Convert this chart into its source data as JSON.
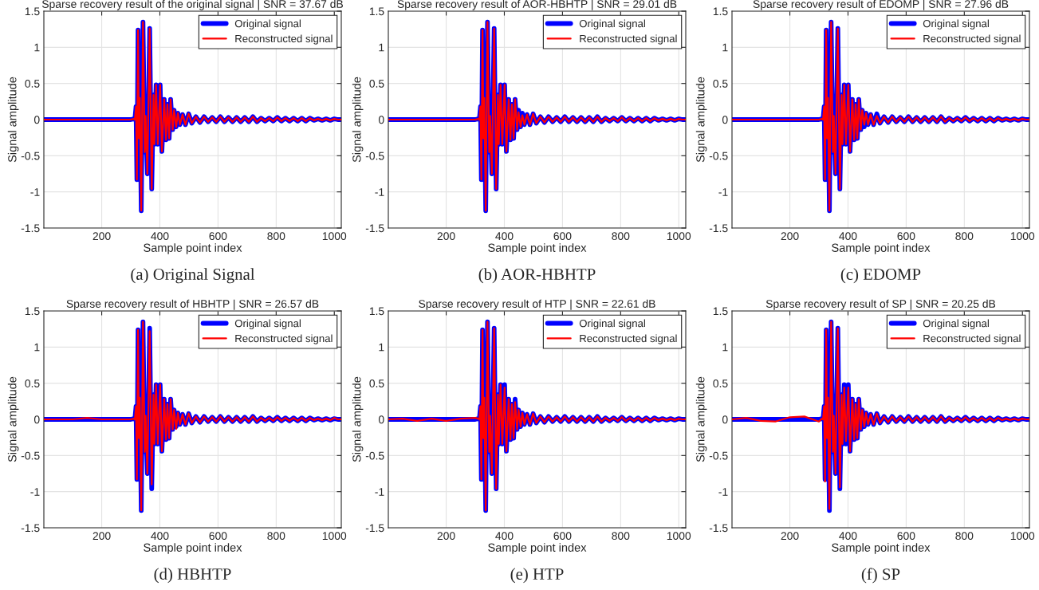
{
  "chart_data": [
    {
      "type": "line",
      "title": "Sparse recovery result of the original signal | SNR = 37.67 dB",
      "xlabel": "Sample point index",
      "ylabel": "Signal amplitude",
      "annotations": [
        "(a) Original Signal"
      ],
      "xlim": [
        1,
        1024
      ],
      "xticks": [
        200,
        400,
        600,
        800,
        1000
      ],
      "ylim": [
        -1.5,
        1.5
      ],
      "yticks": [
        -1.5,
        -1,
        -0.5,
        0,
        0.5,
        1,
        1.5
      ],
      "grid": true,
      "legend": "top right",
      "line_style": "solid",
      "x": [
        1,
        50,
        100,
        150,
        200,
        250,
        300,
        310,
        314,
        318,
        321,
        325,
        328,
        331,
        336,
        342,
        348,
        351,
        357,
        365,
        372,
        378,
        381,
        387,
        393,
        401,
        407,
        415,
        421,
        426,
        432,
        437,
        444,
        449,
        456,
        462,
        469,
        478,
        488,
        499,
        510,
        524,
        538,
        552,
        566,
        580,
        594,
        608,
        622,
        636,
        650,
        664,
        678,
        692,
        706,
        720,
        734,
        748,
        762,
        776,
        790,
        804,
        818,
        832,
        846,
        860,
        874,
        888,
        902,
        916,
        930,
        944,
        958,
        972,
        986,
        1000,
        1012,
        1024
      ],
      "series": [
        {
          "name": "Original signal",
          "color": "#0000ff",
          "values": [
            0,
            0,
            0,
            0,
            0,
            0,
            0,
            0.01,
            0,
            0.18,
            -0.83,
            1.24,
            -0.26,
            0.3,
            -1.26,
            1.35,
            -0.45,
            0.05,
            -0.75,
            1.26,
            -0.96,
            0.34,
            -0.34,
            0.48,
            -0.34,
            0.48,
            -0.44,
            0.28,
            -0.28,
            0.21,
            -0.26,
            0.28,
            -0.14,
            0.13,
            -0.1,
            0.09,
            -0.07,
            0.07,
            -0.07,
            0.08,
            -0.05,
            0.04,
            -0.04,
            0.04,
            -0.03,
            0.03,
            -0.03,
            0.04,
            -0.03,
            0.03,
            -0.03,
            0.03,
            -0.03,
            0.03,
            -0.03,
            0.04,
            -0.03,
            0.02,
            -0.02,
            0.02,
            -0.02,
            0.03,
            -0.02,
            0.02,
            -0.02,
            0.02,
            -0.02,
            0.02,
            -0.02,
            0.02,
            -0.01,
            0.01,
            -0.01,
            0.01,
            -0.01,
            0.01,
            0,
            0
          ]
        },
        {
          "name": "Reconstructed signal",
          "color": "#ff0000",
          "values": [
            0,
            0,
            0,
            0,
            0,
            0,
            0,
            0.01,
            0,
            0.18,
            -0.83,
            1.24,
            -0.26,
            0.3,
            -1.26,
            1.35,
            -0.45,
            0.05,
            -0.75,
            1.26,
            -0.96,
            0.34,
            -0.34,
            0.48,
            -0.34,
            0.48,
            -0.44,
            0.28,
            -0.28,
            0.21,
            -0.26,
            0.28,
            -0.14,
            0.13,
            -0.1,
            0.09,
            -0.07,
            0.07,
            -0.07,
            0.08,
            -0.05,
            0.04,
            -0.04,
            0.04,
            -0.03,
            0.03,
            -0.03,
            0.04,
            -0.03,
            0.03,
            -0.03,
            0.03,
            -0.03,
            0.03,
            -0.03,
            0.04,
            -0.03,
            0.02,
            -0.02,
            0.02,
            -0.02,
            0.03,
            -0.02,
            0.02,
            -0.02,
            0.02,
            -0.02,
            0.02,
            -0.02,
            0.02,
            -0.01,
            0.01,
            -0.01,
            0.01,
            -0.01,
            0.01,
            0,
            0
          ]
        }
      ]
    },
    {
      "type": "line",
      "title": "Sparse recovery result of AOR-HBHTP | SNR = 29.01 dB",
      "xlabel": "Sample point index",
      "ylabel": "Signal amplitude",
      "annotations": [
        "(b) AOR-HBHTP"
      ],
      "xlim": [
        1,
        1024
      ],
      "xticks": [
        200,
        400,
        600,
        800,
        1000
      ],
      "ylim": [
        -1.5,
        1.5
      ],
      "yticks": [
        -1.5,
        -1,
        -0.5,
        0,
        0.5,
        1,
        1.5
      ],
      "grid": true,
      "legend": "top right",
      "line_style": "solid",
      "x": [
        1,
        50,
        100,
        150,
        200,
        250,
        300,
        310,
        314,
        318,
        321,
        325,
        328,
        331,
        336,
        342,
        348,
        351,
        357,
        365,
        372,
        378,
        381,
        387,
        393,
        401,
        407,
        415,
        421,
        426,
        432,
        437,
        444,
        449,
        456,
        462,
        469,
        478,
        488,
        499,
        510,
        524,
        538,
        552,
        566,
        580,
        594,
        608,
        622,
        636,
        650,
        664,
        678,
        692,
        706,
        720,
        734,
        748,
        762,
        776,
        790,
        804,
        818,
        832,
        846,
        860,
        874,
        888,
        902,
        916,
        930,
        944,
        958,
        972,
        986,
        1000,
        1012,
        1024
      ],
      "series": [
        {
          "name": "Original signal",
          "color": "#0000ff",
          "values": [
            0,
            0,
            0,
            0,
            0,
            0,
            0,
            0.01,
            0,
            0.18,
            -0.83,
            1.24,
            -0.26,
            0.3,
            -1.26,
            1.35,
            -0.45,
            0.05,
            -0.75,
            1.26,
            -0.96,
            0.34,
            -0.34,
            0.48,
            -0.34,
            0.48,
            -0.44,
            0.28,
            -0.28,
            0.21,
            -0.26,
            0.28,
            -0.14,
            0.13,
            -0.1,
            0.09,
            -0.07,
            0.07,
            -0.07,
            0.08,
            -0.05,
            0.04,
            -0.04,
            0.04,
            -0.03,
            0.03,
            -0.03,
            0.04,
            -0.03,
            0.03,
            -0.03,
            0.03,
            -0.03,
            0.03,
            -0.03,
            0.04,
            -0.03,
            0.02,
            -0.02,
            0.02,
            -0.02,
            0.03,
            -0.02,
            0.02,
            -0.02,
            0.02,
            -0.02,
            0.02,
            -0.02,
            0.02,
            -0.01,
            0.01,
            -0.01,
            0.01,
            -0.01,
            0.01,
            0,
            0
          ]
        },
        {
          "name": "Reconstructed signal",
          "color": "#ff0000",
          "values": [
            0,
            0,
            0,
            0,
            0,
            0,
            0,
            0.01,
            0,
            0.18,
            -0.83,
            1.24,
            -0.26,
            0.3,
            -1.26,
            1.35,
            -0.45,
            0.05,
            -0.75,
            1.26,
            -0.96,
            0.34,
            -0.34,
            0.48,
            -0.34,
            0.48,
            -0.44,
            0.28,
            -0.28,
            0.21,
            -0.26,
            0.28,
            -0.14,
            0.1,
            -0.1,
            0.06,
            -0.07,
            0.07,
            -0.07,
            0.08,
            -0.05,
            0.04,
            -0.04,
            0.04,
            -0.03,
            0.03,
            -0.03,
            0.04,
            -0.03,
            0.03,
            -0.03,
            0.03,
            -0.03,
            0.03,
            -0.03,
            0.04,
            -0.03,
            0.02,
            -0.02,
            0.02,
            -0.02,
            0.03,
            -0.02,
            0.02,
            -0.02,
            0.02,
            -0.02,
            0.02,
            -0.02,
            0.02,
            -0.01,
            0.01,
            -0.01,
            0.01,
            -0.01,
            0.01,
            0,
            0
          ]
        }
      ]
    },
    {
      "type": "line",
      "title": "Sparse recovery result of EDOMP | SNR = 27.96 dB",
      "xlabel": "Sample point index",
      "ylabel": "Signal amplitude",
      "annotations": [
        "(c) EDOMP"
      ],
      "xlim": [
        1,
        1024
      ],
      "xticks": [
        200,
        400,
        600,
        800,
        1000
      ],
      "ylim": [
        -1.5,
        1.5
      ],
      "yticks": [
        -1.5,
        -1,
        -0.5,
        0,
        0.5,
        1,
        1.5
      ],
      "grid": true,
      "legend": "top right",
      "line_style": "solid",
      "x": [
        1,
        50,
        100,
        150,
        200,
        250,
        300,
        310,
        314,
        318,
        321,
        325,
        328,
        331,
        336,
        342,
        348,
        351,
        357,
        365,
        372,
        378,
        381,
        387,
        393,
        401,
        407,
        415,
        421,
        426,
        432,
        437,
        444,
        449,
        456,
        462,
        469,
        478,
        488,
        499,
        510,
        524,
        538,
        552,
        566,
        580,
        594,
        608,
        622,
        636,
        650,
        664,
        678,
        692,
        706,
        720,
        734,
        748,
        762,
        776,
        790,
        804,
        818,
        832,
        846,
        860,
        874,
        888,
        902,
        916,
        930,
        944,
        958,
        972,
        986,
        1000,
        1012,
        1024
      ],
      "series": [
        {
          "name": "Original signal",
          "color": "#0000ff",
          "values": [
            0,
            0,
            0,
            0,
            0,
            0,
            0,
            0.01,
            0,
            0.18,
            -0.83,
            1.24,
            -0.26,
            0.3,
            -1.26,
            1.35,
            -0.45,
            0.05,
            -0.75,
            1.26,
            -0.96,
            0.34,
            -0.34,
            0.48,
            -0.34,
            0.48,
            -0.44,
            0.28,
            -0.28,
            0.21,
            -0.26,
            0.28,
            -0.14,
            0.13,
            -0.1,
            0.09,
            -0.07,
            0.07,
            -0.07,
            0.08,
            -0.05,
            0.04,
            -0.04,
            0.04,
            -0.03,
            0.03,
            -0.03,
            0.04,
            -0.03,
            0.03,
            -0.03,
            0.03,
            -0.03,
            0.03,
            -0.03,
            0.04,
            -0.03,
            0.02,
            -0.02,
            0.02,
            -0.02,
            0.03,
            -0.02,
            0.02,
            -0.02,
            0.02,
            -0.02,
            0.02,
            -0.02,
            0.02,
            -0.01,
            0.01,
            -0.01,
            0.01,
            -0.01,
            0.01,
            0,
            0
          ]
        },
        {
          "name": "Reconstructed signal",
          "color": "#ff0000",
          "values": [
            0,
            0,
            0,
            0,
            0,
            0,
            0,
            0.01,
            0,
            0.18,
            -0.83,
            1.24,
            -0.26,
            0.3,
            -1.26,
            1.35,
            -0.45,
            0.05,
            -0.75,
            1.26,
            -0.96,
            0.34,
            -0.34,
            0.48,
            -0.34,
            0.48,
            -0.44,
            0.28,
            -0.28,
            0.21,
            -0.26,
            0.28,
            -0.14,
            0.13,
            -0.07,
            0.09,
            -0.07,
            0.07,
            -0.07,
            0.05,
            -0.05,
            0.04,
            -0.04,
            0.04,
            -0.03,
            0.03,
            -0.03,
            0.04,
            -0.03,
            0.03,
            -0.03,
            0.03,
            -0.03,
            0.03,
            -0.03,
            0.04,
            -0.03,
            0.02,
            -0.02,
            0.02,
            -0.02,
            0.03,
            -0.02,
            0.02,
            -0.02,
            0.02,
            -0.02,
            0.02,
            -0.02,
            0.02,
            -0.01,
            0.01,
            -0.01,
            0.01,
            -0.01,
            0.01,
            0,
            0
          ]
        }
      ]
    },
    {
      "type": "line",
      "title": "Sparse recovery result of HBHTP | SNR = 26.57 dB",
      "xlabel": "Sample point index",
      "ylabel": "Signal amplitude",
      "annotations": [
        "(d) HBHTP"
      ],
      "xlim": [
        1,
        1024
      ],
      "xticks": [
        200,
        400,
        600,
        800,
        1000
      ],
      "ylim": [
        -1.5,
        1.5
      ],
      "yticks": [
        -1.5,
        -1,
        -0.5,
        0,
        0.5,
        1,
        1.5
      ],
      "grid": true,
      "legend": "top right",
      "line_style": "solid",
      "x": [
        1,
        50,
        100,
        150,
        200,
        250,
        300,
        310,
        314,
        318,
        321,
        325,
        328,
        331,
        336,
        342,
        348,
        351,
        357,
        365,
        372,
        378,
        381,
        387,
        393,
        401,
        407,
        415,
        421,
        426,
        432,
        437,
        444,
        449,
        456,
        462,
        469,
        478,
        488,
        499,
        510,
        524,
        538,
        552,
        566,
        580,
        594,
        608,
        622,
        636,
        650,
        664,
        678,
        692,
        706,
        720,
        734,
        748,
        762,
        776,
        790,
        804,
        818,
        832,
        846,
        860,
        874,
        888,
        902,
        916,
        930,
        944,
        958,
        972,
        986,
        1000,
        1012,
        1024
      ],
      "series": [
        {
          "name": "Original signal",
          "color": "#0000ff",
          "values": [
            0,
            0,
            0,
            0,
            0,
            0,
            0,
            0.01,
            0,
            0.18,
            -0.83,
            1.24,
            -0.26,
            0.3,
            -1.26,
            1.35,
            -0.45,
            0.05,
            -0.75,
            1.26,
            -0.96,
            0.34,
            -0.34,
            0.48,
            -0.34,
            0.48,
            -0.44,
            0.28,
            -0.28,
            0.21,
            -0.26,
            0.28,
            -0.14,
            0.13,
            -0.1,
            0.09,
            -0.07,
            0.07,
            -0.07,
            0.08,
            -0.05,
            0.04,
            -0.04,
            0.04,
            -0.03,
            0.03,
            -0.03,
            0.04,
            -0.03,
            0.03,
            -0.03,
            0.03,
            -0.03,
            0.03,
            -0.03,
            0.04,
            -0.03,
            0.02,
            -0.02,
            0.02,
            -0.02,
            0.03,
            -0.02,
            0.02,
            -0.02,
            0.02,
            -0.02,
            0.02,
            -0.02,
            0.02,
            -0.01,
            0.01,
            -0.01,
            0.01,
            -0.01,
            0.01,
            0,
            0
          ]
        },
        {
          "name": "Reconstructed signal",
          "color": "#ff0000",
          "values": [
            0,
            0,
            0,
            0.02,
            0,
            0,
            0,
            0.01,
            0,
            0.18,
            -0.83,
            1.24,
            -0.26,
            0.3,
            -1.26,
            1.35,
            -0.45,
            0.05,
            -0.75,
            1.22,
            -0.9,
            0.34,
            -0.34,
            0.48,
            -0.34,
            0.48,
            -0.44,
            0.28,
            -0.28,
            0.21,
            -0.26,
            0.28,
            -0.14,
            0.13,
            -0.13,
            0.09,
            -0.07,
            0.07,
            -0.07,
            0.08,
            -0.05,
            0.04,
            -0.04,
            0.04,
            -0.03,
            0.03,
            -0.03,
            0.04,
            -0.03,
            0.03,
            -0.03,
            0.03,
            -0.03,
            0.03,
            -0.03,
            0.04,
            -0.03,
            0.02,
            -0.02,
            0.02,
            -0.02,
            0.03,
            -0.02,
            0.02,
            -0.02,
            0.02,
            -0.02,
            0.02,
            -0.02,
            0.02,
            -0.01,
            0.01,
            -0.01,
            0.01,
            -0.01,
            0.02,
            0,
            0
          ]
        }
      ]
    },
    {
      "type": "line",
      "title": "Sparse recovery result of HTP | SNR = 22.61 dB",
      "xlabel": "Sample point index",
      "ylabel": "Signal amplitude",
      "annotations": [
        "(e) HTP"
      ],
      "xlim": [
        1,
        1024
      ],
      "xticks": [
        200,
        400,
        600,
        800,
        1000
      ],
      "ylim": [
        -1.5,
        1.5
      ],
      "yticks": [
        -1.5,
        -1,
        -0.5,
        0,
        0.5,
        1,
        1.5
      ],
      "grid": true,
      "legend": "top right",
      "line_style": "solid",
      "x": [
        1,
        50,
        100,
        150,
        200,
        250,
        300,
        310,
        314,
        318,
        321,
        325,
        328,
        331,
        336,
        342,
        348,
        351,
        357,
        365,
        372,
        378,
        381,
        387,
        393,
        401,
        407,
        415,
        421,
        426,
        432,
        437,
        444,
        449,
        456,
        462,
        469,
        478,
        488,
        499,
        510,
        524,
        538,
        552,
        566,
        580,
        594,
        608,
        622,
        636,
        650,
        664,
        678,
        692,
        706,
        720,
        734,
        748,
        762,
        776,
        790,
        804,
        818,
        832,
        846,
        860,
        874,
        888,
        902,
        916,
        930,
        944,
        958,
        972,
        986,
        1000,
        1012,
        1024
      ],
      "series": [
        {
          "name": "Original signal",
          "color": "#0000ff",
          "values": [
            0,
            0,
            0,
            0,
            0,
            0,
            0,
            0.01,
            0,
            0.18,
            -0.83,
            1.24,
            -0.26,
            0.3,
            -1.26,
            1.35,
            -0.45,
            0.05,
            -0.75,
            1.26,
            -0.96,
            0.34,
            -0.34,
            0.48,
            -0.34,
            0.48,
            -0.44,
            0.28,
            -0.28,
            0.21,
            -0.26,
            0.28,
            -0.14,
            0.13,
            -0.1,
            0.09,
            -0.07,
            0.07,
            -0.07,
            0.08,
            -0.05,
            0.04,
            -0.04,
            0.04,
            -0.03,
            0.03,
            -0.03,
            0.04,
            -0.03,
            0.03,
            -0.03,
            0.03,
            -0.03,
            0.03,
            -0.03,
            0.04,
            -0.03,
            0.02,
            -0.02,
            0.02,
            -0.02,
            0.03,
            -0.02,
            0.02,
            -0.02,
            0.02,
            -0.02,
            0.02,
            -0.02,
            0.02,
            -0.01,
            0.01,
            -0.01,
            0.01,
            -0.01,
            0.01,
            0,
            0
          ]
        },
        {
          "name": "Reconstructed signal",
          "color": "#ff0000",
          "values": [
            0,
            0.01,
            -0.02,
            0.01,
            -0.02,
            0.01,
            0.02,
            0.01,
            0,
            0.18,
            -0.83,
            1.24,
            -0.26,
            0.3,
            -1.26,
            1.35,
            -0.45,
            0.05,
            -0.75,
            1.26,
            -0.96,
            0.34,
            -0.34,
            0.48,
            -0.34,
            0.44,
            -0.44,
            0.28,
            -0.28,
            0.21,
            -0.26,
            0.24,
            -0.14,
            0.13,
            -0.1,
            0.09,
            -0.07,
            0.07,
            -0.07,
            0.08,
            -0.05,
            0.04,
            -0.04,
            0.04,
            -0.03,
            0.03,
            -0.03,
            0.04,
            -0.03,
            0.03,
            -0.03,
            0.03,
            -0.03,
            0.03,
            -0.03,
            0.04,
            -0.03,
            0.02,
            -0.02,
            0.02,
            -0.02,
            0.03,
            -0.02,
            0.02,
            -0.02,
            0.02,
            -0.02,
            0.02,
            -0.02,
            0.02,
            -0.01,
            0.01,
            -0.01,
            0.01,
            -0.01,
            0.01,
            0,
            0
          ]
        }
      ]
    },
    {
      "type": "line",
      "title": "Sparse recovery result of SP | SNR = 20.25 dB",
      "xlabel": "Sample point index",
      "ylabel": "Signal amplitude",
      "annotations": [
        "(f) SP"
      ],
      "xlim": [
        1,
        1024
      ],
      "xticks": [
        200,
        400,
        600,
        800,
        1000
      ],
      "ylim": [
        -1.5,
        1.5
      ],
      "yticks": [
        -1.5,
        -1,
        -0.5,
        0,
        0.5,
        1,
        1.5
      ],
      "grid": true,
      "legend": "top right",
      "line_style": "solid",
      "x": [
        1,
        50,
        100,
        150,
        200,
        250,
        300,
        310,
        314,
        318,
        321,
        325,
        328,
        331,
        336,
        342,
        348,
        351,
        357,
        365,
        372,
        378,
        381,
        387,
        393,
        401,
        407,
        415,
        421,
        426,
        432,
        437,
        444,
        449,
        456,
        462,
        469,
        478,
        488,
        499,
        510,
        524,
        538,
        552,
        566,
        580,
        594,
        608,
        622,
        636,
        650,
        664,
        678,
        692,
        706,
        720,
        734,
        748,
        762,
        776,
        790,
        804,
        818,
        832,
        846,
        860,
        874,
        888,
        902,
        916,
        930,
        944,
        958,
        972,
        986,
        1000,
        1012,
        1024
      ],
      "series": [
        {
          "name": "Original signal",
          "color": "#0000ff",
          "values": [
            0,
            0,
            0,
            0,
            0,
            0,
            0,
            0.01,
            0,
            0.18,
            -0.83,
            1.24,
            -0.26,
            0.3,
            -1.26,
            1.35,
            -0.45,
            0.05,
            -0.75,
            1.26,
            -0.96,
            0.34,
            -0.34,
            0.48,
            -0.34,
            0.48,
            -0.44,
            0.28,
            -0.28,
            0.21,
            -0.26,
            0.28,
            -0.14,
            0.13,
            -0.1,
            0.09,
            -0.07,
            0.07,
            -0.07,
            0.08,
            -0.05,
            0.04,
            -0.04,
            0.04,
            -0.03,
            0.03,
            -0.03,
            0.04,
            -0.03,
            0.03,
            -0.03,
            0.03,
            -0.03,
            0.03,
            -0.03,
            0.04,
            -0.03,
            0.02,
            -0.02,
            0.02,
            -0.02,
            0.03,
            -0.02,
            0.02,
            -0.02,
            0.02,
            -0.02,
            0.02,
            -0.02,
            0.02,
            -0.01,
            0.01,
            -0.01,
            0.01,
            -0.01,
            0.01,
            0,
            0
          ]
        },
        {
          "name": "Reconstructed signal",
          "color": "#ff0000",
          "values": [
            0,
            0.02,
            -0.02,
            -0.03,
            0.03,
            0.04,
            -0.03,
            0.01,
            0,
            0.18,
            -0.86,
            1.24,
            -0.26,
            0.3,
            -1.24,
            1.35,
            -0.45,
            0.05,
            -0.75,
            1.26,
            -0.94,
            0.34,
            -0.34,
            0.44,
            -0.3,
            0.44,
            -0.44,
            0.28,
            -0.28,
            0.21,
            -0.26,
            0.28,
            -0.14,
            0.13,
            -0.1,
            0.09,
            -0.07,
            0.07,
            -0.07,
            0.08,
            -0.05,
            0.04,
            -0.04,
            0.04,
            -0.03,
            0.03,
            -0.03,
            0.04,
            -0.03,
            0.03,
            -0.03,
            0.03,
            -0.03,
            0.03,
            -0.03,
            0.04,
            -0.03,
            0.02,
            -0.02,
            0.02,
            -0.02,
            0.03,
            -0.02,
            0.02,
            -0.02,
            0.02,
            -0.02,
            0.02,
            -0.02,
            0.02,
            -0.01,
            0.01,
            -0.01,
            0.01,
            -0.01,
            0.01,
            0,
            0
          ]
        }
      ]
    }
  ]
}
